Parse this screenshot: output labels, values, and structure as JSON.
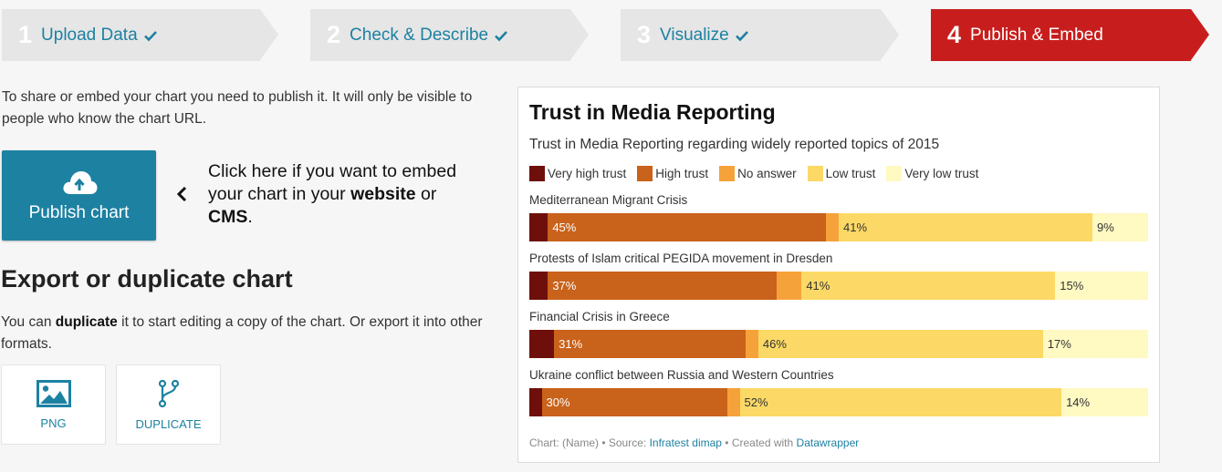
{
  "steps": [
    {
      "num": "1",
      "label": "Upload Data",
      "done": true
    },
    {
      "num": "2",
      "label": "Check & Describe",
      "done": true
    },
    {
      "num": "3",
      "label": "Visualize",
      "done": true
    },
    {
      "num": "4",
      "label": "Publish & Embed",
      "done": false
    }
  ],
  "publish": {
    "intro": "To share or embed your chart you need to publish it. It will only be visible to people who know the chart URL.",
    "button_label": "Publish chart",
    "hint_pre": "Click here if you want to embed your chart in your ",
    "hint_b1": "website",
    "hint_mid": " or ",
    "hint_b2": "CMS",
    "hint_post": "."
  },
  "export": {
    "heading": "Export or duplicate chart",
    "text_pre": "You can ",
    "text_bold": "duplicate",
    "text_post": " it to start editing a copy of the chart. Or export it into other formats.",
    "png_label": "PNG",
    "duplicate_label": "DUPLICATE"
  },
  "colors": {
    "very_high": "#6f0f0c",
    "high": "#c9621b",
    "no_answer": "#f6a23a",
    "low": "#fcd966",
    "very_low": "#fff9c2"
  },
  "chart_data": {
    "type": "bar",
    "stacked": true,
    "title": "Trust in Media Reporting",
    "subtitle": "Trust in Media Reporting regarding widely reported topics of 2015",
    "legend_position": "top-left",
    "categories": [
      "Mediterranean Migrant Crisis",
      "Protests of Islam critical PEGIDA movement in Dresden",
      "Financial Crisis in Greece",
      "Ukraine conflict between Russia and Western Countries"
    ],
    "series": [
      {
        "name": "Very high trust",
        "values": [
          3,
          3,
          4,
          2
        ]
      },
      {
        "name": "High trust",
        "values": [
          45,
          37,
          31,
          30
        ]
      },
      {
        "name": "No answer",
        "values": [
          2,
          4,
          2,
          2
        ]
      },
      {
        "name": "Low trust",
        "values": [
          41,
          41,
          46,
          52
        ]
      },
      {
        "name": "Very low trust",
        "values": [
          9,
          15,
          17,
          14
        ]
      }
    ],
    "value_labels": [
      [
        "45%",
        "41%",
        "9%"
      ],
      [
        "37%",
        "41%",
        "15%"
      ],
      [
        "31%",
        "46%",
        "17%"
      ],
      [
        "30%",
        "52%",
        "14%"
      ]
    ],
    "footer_pre": "Chart: (Name) • Source: ",
    "source": "Infratest dimap",
    "footer_mid": " • Created with ",
    "creator": "Datawrapper"
  }
}
